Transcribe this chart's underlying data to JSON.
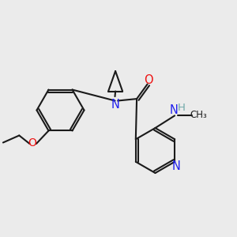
{
  "bg_color": "#ebebeb",
  "bond_color": "#1a1a1a",
  "N_color": "#2020ee",
  "O_color": "#ee1010",
  "H_color": "#6fa8a8",
  "line_width": 1.5,
  "font_size": 9.5,
  "xlim": [
    0,
    10
  ],
  "ylim": [
    0,
    10
  ]
}
